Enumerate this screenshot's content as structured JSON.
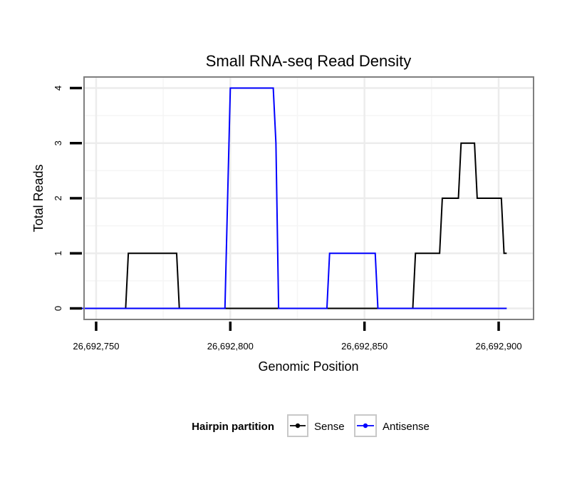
{
  "chart_data": {
    "type": "line",
    "title": "Small RNA-seq Read Density",
    "xlabel": "Genomic Position",
    "ylabel": "Total Reads",
    "xlim": [
      26692745.5,
      26692913
    ],
    "ylim": [
      -0.2,
      4.2
    ],
    "grid": true,
    "x_ticks": [
      26692750,
      26692800,
      26692850,
      26692900
    ],
    "x_tick_labels": [
      "26,692,750",
      "26,692,800",
      "26,692,850",
      "26,692,900"
    ],
    "y_ticks": [
      0,
      1,
      2,
      3,
      4
    ],
    "y_tick_labels": [
      "0",
      "1",
      "2",
      "3",
      "4"
    ],
    "legend": {
      "title": "Hairpin partition",
      "position": "bottom"
    },
    "series": [
      {
        "name": "Sense",
        "color": "#000000",
        "points": [
          [
            26692743.5,
            0
          ],
          [
            26692761,
            0
          ],
          [
            26692762,
            1
          ],
          [
            26692780,
            1
          ],
          [
            26692781,
            0
          ],
          [
            26692868,
            0
          ],
          [
            26692869,
            1
          ],
          [
            26692878,
            1
          ],
          [
            26692879,
            2
          ],
          [
            26692885,
            2
          ],
          [
            26692886,
            3
          ],
          [
            26692891,
            3
          ],
          [
            26692892,
            2
          ],
          [
            26692901,
            2
          ],
          [
            26692902,
            1
          ],
          [
            26692903,
            1
          ]
        ]
      },
      {
        "name": "Antisense",
        "color": "#0000ff",
        "points": [
          [
            26692743.5,
            0
          ],
          [
            26692798,
            0
          ],
          [
            26692799,
            2
          ],
          [
            26692800,
            4
          ],
          [
            26692816,
            4
          ],
          [
            26692817,
            3
          ],
          [
            26692818,
            0
          ],
          [
            26692836,
            0
          ],
          [
            26692837,
            1
          ],
          [
            26692854,
            1
          ],
          [
            26692855,
            0
          ],
          [
            26692903,
            0
          ]
        ]
      }
    ]
  }
}
